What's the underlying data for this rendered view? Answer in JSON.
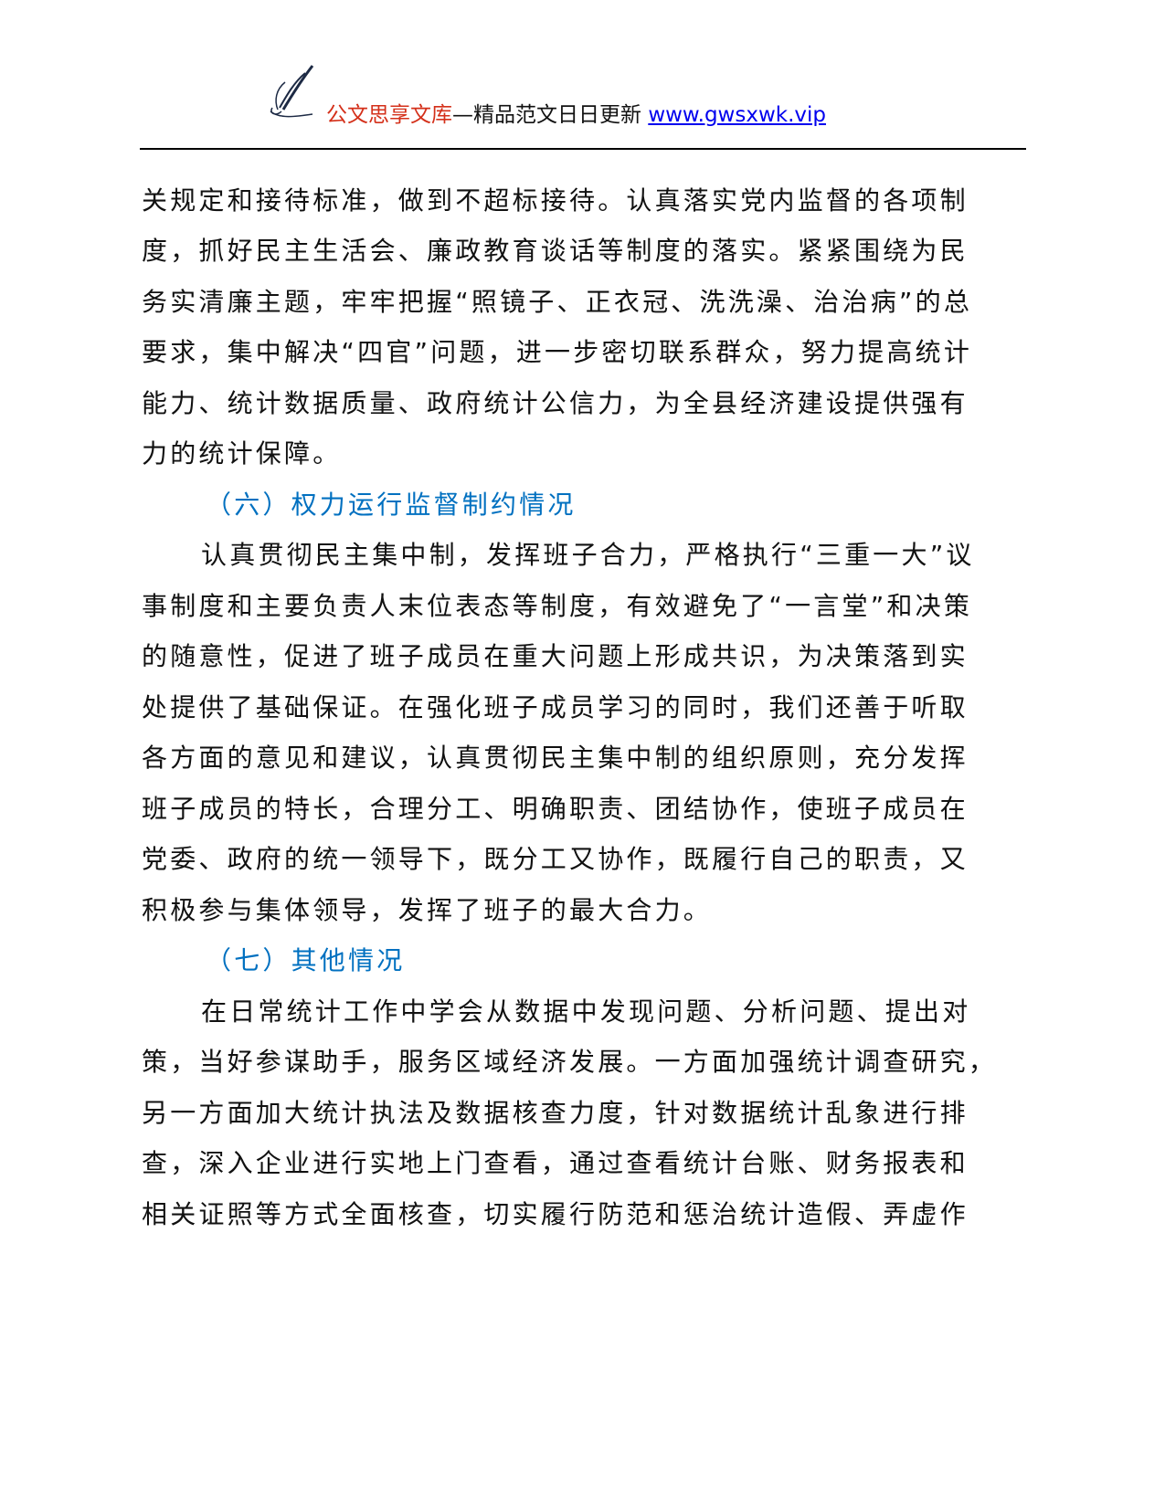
{
  "header": {
    "brand": "公文思享文库",
    "tagline": "—精品范文日日更新 ",
    "url": "www.gwsxwk.vip",
    "logo_icon": "quill-pen-icon"
  },
  "colors": {
    "brand": "#d4301a",
    "heading": "#0070c0",
    "link": "#0000ee"
  },
  "body": {
    "lines": [
      "关规定和接待标准，做到不超标接待。认真落实党内监督的各项制",
      "度，抓好民主生活会、廉政教育谈话等制度的落实。紧紧围绕为民",
      "务实清廉主题，牢牢把握“照镜子、正衣冠、洗洗澡、治治病”的总",
      "要求，集中解决“四官”问题，进一步密切联系群众，努力提高统计",
      "能力、统计数据质量、政府统计公信力，为全县经济建设提供强有",
      "力的统计保障。",
      "（六）权力运行监督制约情况",
      "认真贯彻民主集中制，发挥班子合力，严格执行“三重一大”议",
      "事制度和主要负责人末位表态等制度，有效避免了“一言堂”和决策",
      "的随意性，促进了班子成员在重大问题上形成共识，为决策落到实",
      "处提供了基础保证。在强化班子成员学习的同时，我们还善于听取",
      "各方面的意见和建议，认真贯彻民主集中制的组织原则，充分发挥",
      "班子成员的特长，合理分工、明确职责、团结协作，使班子成员在",
      "党委、政府的统一领导下，既分工又协作，既履行自己的职责，又",
      "积极参与集体领导，发挥了班子的最大合力。",
      "（七）其他情况",
      "在日常统计工作中学会从数据中发现问题、分析问题、提出对",
      "策，当好参谋助手，服务区域经济发展。一方面加强统计调查研究，",
      "另一方面加大统计执法及数据核查力度，针对数据统计乱象进行排",
      "查，深入企业进行实地上门查看，通过查看统计台账、财务报表和",
      "相关证照等方式全面核查，切实履行防范和惩治统计造假、弄虚作"
    ]
  }
}
